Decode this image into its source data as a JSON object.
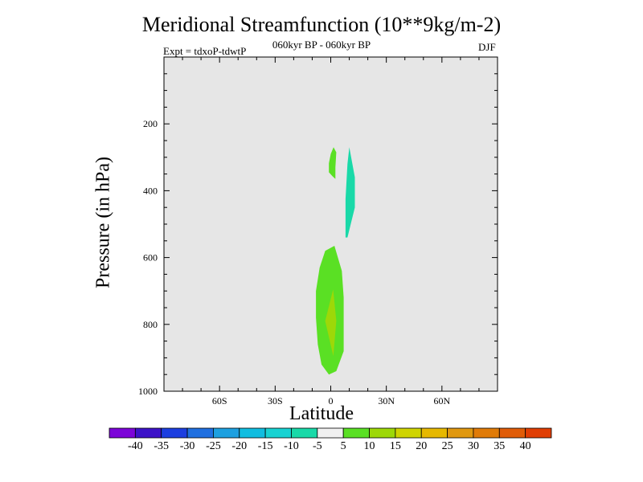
{
  "chart_data": {
    "type": "contour",
    "title": "Meridional Streamfunction (10**9kg/m-2)",
    "subtitle": "060kyr BP - 060kyr BP",
    "annotation_left": "Expt = tdxoP-tdwtP",
    "annotation_right": "DJF",
    "xlabel": "Latitude",
    "ylabel": "Pressure (in hPa)",
    "xlim": [
      -90,
      90
    ],
    "ylim": [
      0,
      1000
    ],
    "y_reversed": true,
    "x_ticks": [
      {
        "value": -60,
        "label": "60S"
      },
      {
        "value": -30,
        "label": "30S"
      },
      {
        "value": 0,
        "label": "0"
      },
      {
        "value": 30,
        "label": "30N"
      },
      {
        "value": 60,
        "label": "60N"
      }
    ],
    "y_ticks": [
      {
        "value": 200,
        "label": "200"
      },
      {
        "value": 400,
        "label": "400"
      },
      {
        "value": 600,
        "label": "600"
      },
      {
        "value": 800,
        "label": "800"
      },
      {
        "value": 1000,
        "label": "1000"
      }
    ],
    "background_color": "#e6e6e6",
    "regions": [
      {
        "level": "5 to 10",
        "color": "#5ae024",
        "points": [
          [
            1.5,
            270
          ],
          [
            3,
            285
          ],
          [
            2.5,
            330
          ],
          [
            2.5,
            365
          ],
          [
            1,
            357
          ],
          [
            -1,
            345
          ],
          [
            -1,
            318
          ],
          [
            0,
            290
          ]
        ]
      },
      {
        "level": "-10 to -5",
        "color": "#19d9a8",
        "points": [
          [
            10,
            270
          ],
          [
            13,
            360
          ],
          [
            13,
            450
          ],
          [
            11,
            495
          ],
          [
            9,
            540
          ],
          [
            8,
            540
          ],
          [
            8,
            500
          ],
          [
            8,
            425
          ],
          [
            9,
            320
          ]
        ]
      },
      {
        "level": "5 to 10",
        "color": "#5ae024",
        "points": [
          [
            2,
            565
          ],
          [
            6,
            640
          ],
          [
            7,
            720
          ],
          [
            7,
            800
          ],
          [
            7,
            880
          ],
          [
            3,
            940
          ],
          [
            -1,
            950
          ],
          [
            -5,
            920
          ],
          [
            -7,
            860
          ],
          [
            -8,
            780
          ],
          [
            -8,
            700
          ],
          [
            -6,
            630
          ],
          [
            -3,
            580
          ]
        ]
      },
      {
        "level": "10 to 15",
        "color": "#9dd808",
        "points": [
          [
            1.3,
            695
          ],
          [
            3,
            790
          ],
          [
            1.4,
            895
          ],
          [
            -3,
            790
          ]
        ]
      }
    ],
    "colorbar": {
      "colors": [
        "#7c04d8",
        "#3c12c8",
        "#1c3ee0",
        "#1f6fe0",
        "#1da0e0",
        "#10bde0",
        "#17d2d2",
        "#19d9a8",
        "#f0f0f0",
        "#5ae024",
        "#9dd808",
        "#cfd400",
        "#e6b800",
        "#e09810",
        "#e07b08",
        "#e05c08",
        "#e03e04"
      ],
      "labels": [
        "-40",
        "-35",
        "-30",
        "-25",
        "-20",
        "-15",
        "-10",
        "-5",
        "5",
        "10",
        "15",
        "20",
        "25",
        "30",
        "35",
        "40"
      ]
    }
  }
}
